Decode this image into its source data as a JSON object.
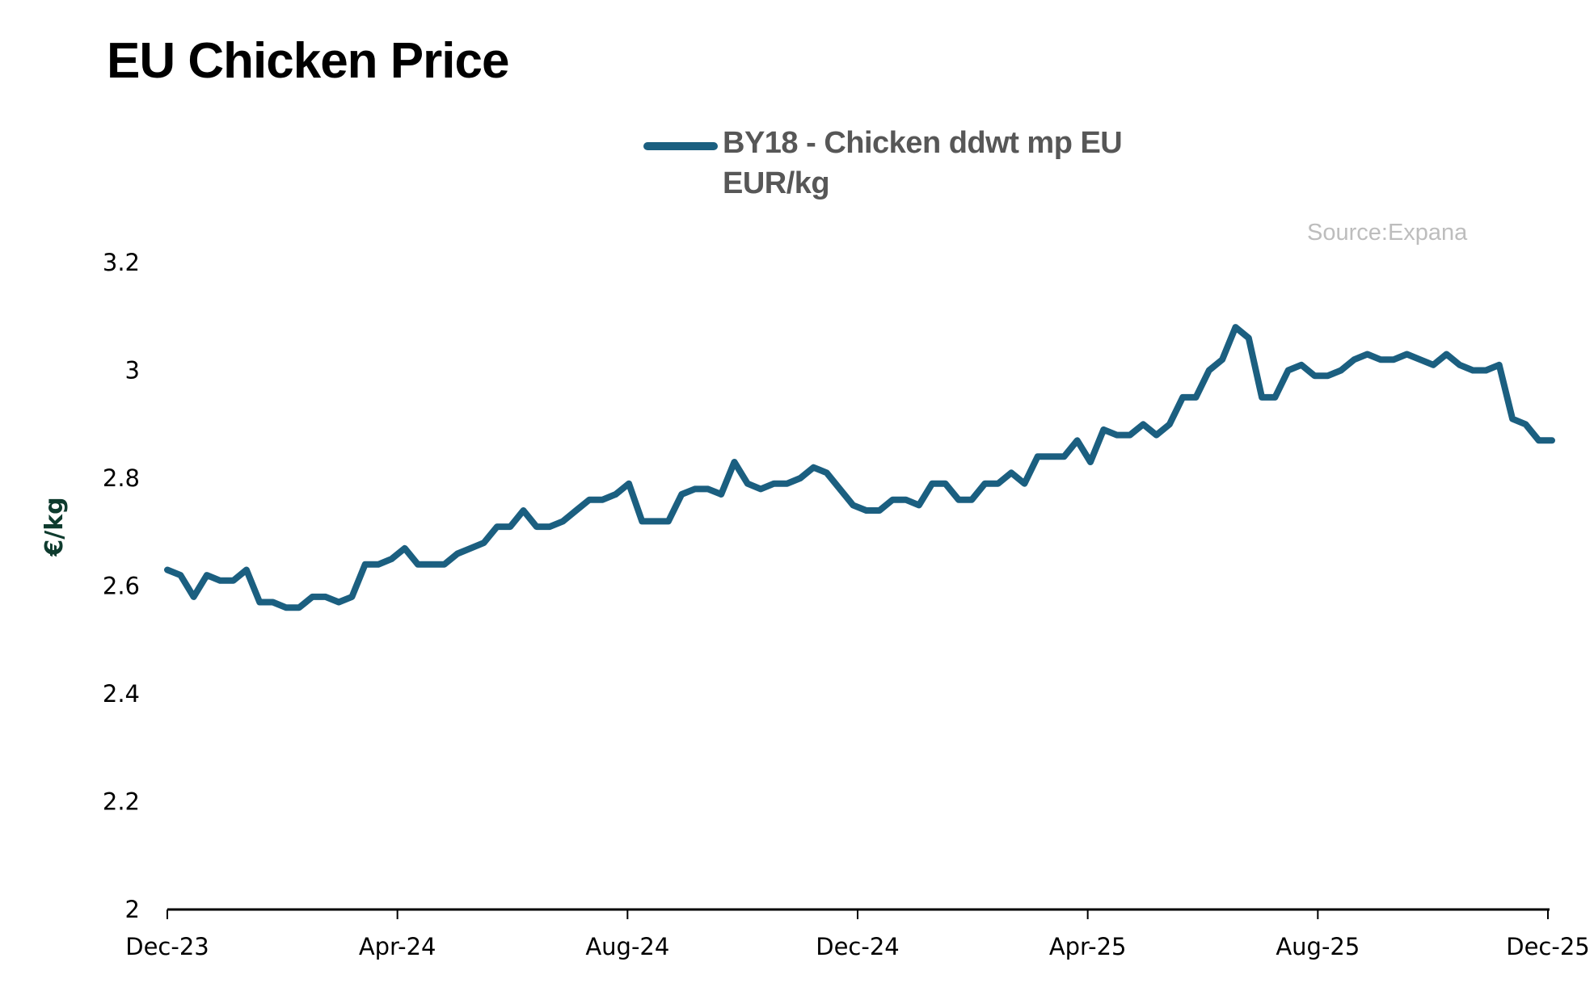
{
  "header": {
    "title": "EU Chicken Price"
  },
  "legend": {
    "entries": [
      {
        "label_line1": "BY18 - Chicken ddwt mp EU",
        "label_line2": "EUR/kg",
        "color": "#1b5f80"
      }
    ]
  },
  "source": "Source:Expana",
  "chart_data": {
    "type": "line",
    "title": "EU Chicken Price",
    "xlabel": "",
    "ylabel": "€/kg",
    "ylim": [
      2,
      3.2
    ],
    "yticks": [
      "2",
      "2.2",
      "2.4",
      "2.6",
      "2.8",
      "3",
      "3.2"
    ],
    "ytick_values": [
      2,
      2.2,
      2.4,
      2.6,
      2.8,
      3,
      3.2
    ],
    "xticks": [
      "Dec-23",
      "Apr-24",
      "Aug-24",
      "Dec-24",
      "Apr-25",
      "Aug-25",
      "Dec-25"
    ],
    "grid": false,
    "legend_position": "top-center",
    "series": [
      {
        "name": "BY18 - Chicken ddwt mp EU EUR/kg",
        "color": "#1b5f80",
        "values": [
          2.63,
          2.62,
          2.58,
          2.62,
          2.61,
          2.61,
          2.63,
          2.57,
          2.57,
          2.56,
          2.56,
          2.58,
          2.58,
          2.57,
          2.58,
          2.64,
          2.64,
          2.65,
          2.67,
          2.64,
          2.64,
          2.64,
          2.66,
          2.67,
          2.68,
          2.71,
          2.71,
          2.74,
          2.71,
          2.71,
          2.72,
          2.74,
          2.76,
          2.76,
          2.77,
          2.79,
          2.72,
          2.72,
          2.72,
          2.77,
          2.78,
          2.78,
          2.77,
          2.83,
          2.79,
          2.78,
          2.79,
          2.79,
          2.8,
          2.82,
          2.81,
          2.78,
          2.75,
          2.74,
          2.74,
          2.76,
          2.76,
          2.75,
          2.79,
          2.79,
          2.76,
          2.76,
          2.79,
          2.79,
          2.81,
          2.79,
          2.84,
          2.84,
          2.84,
          2.87,
          2.83,
          2.89,
          2.88,
          2.88,
          2.9,
          2.88,
          2.9,
          2.95,
          2.95,
          3.0,
          3.02,
          3.08,
          3.06,
          2.95,
          2.95,
          3.0,
          3.01,
          2.99,
          2.99,
          3.0,
          3.02,
          3.03,
          3.02,
          3.02,
          3.03,
          3.02,
          3.01,
          3.03,
          3.01,
          3.0,
          3.0,
          3.01,
          2.91,
          2.9,
          2.87,
          2.87
        ]
      }
    ]
  }
}
